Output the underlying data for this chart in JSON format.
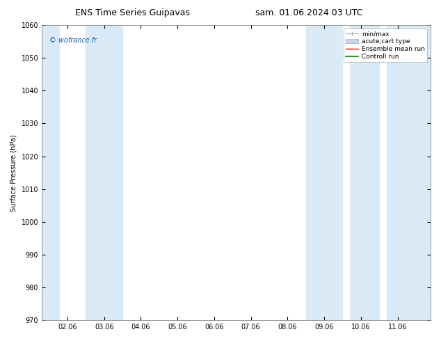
{
  "title_left": "ENS Time Series Guipavas",
  "title_right": "sam. 01.06.2024 03 UTC",
  "ylabel": "Surface Pressure (hPa)",
  "ylim": [
    970,
    1060
  ],
  "yticks": [
    970,
    980,
    990,
    1000,
    1010,
    1020,
    1030,
    1040,
    1050,
    1060
  ],
  "xtick_labels": [
    "02.06",
    "03.06",
    "04.06",
    "05.06",
    "06.06",
    "07.06",
    "08.06",
    "09.06",
    "10.06",
    "11.06"
  ],
  "xtick_positions": [
    1,
    2,
    3,
    4,
    5,
    6,
    7,
    8,
    9,
    10
  ],
  "xlim": [
    0.3,
    10.9
  ],
  "shaded_bands": [
    {
      "xmin": 0.3,
      "xmax": 0.78
    },
    {
      "xmin": 1.5,
      "xmax": 2.5
    },
    {
      "xmin": 7.5,
      "xmax": 8.5
    },
    {
      "xmin": 8.7,
      "xmax": 9.5
    },
    {
      "xmin": 9.7,
      "xmax": 10.9
    }
  ],
  "band_color": "#daeaf7",
  "watermark": "© wofrance.fr",
  "watermark_color": "#1a5fa8",
  "background_color": "#ffffff",
  "plot_bg_color": "#ffffff",
  "spine_color": "#888888",
  "title_fontsize": 9,
  "label_fontsize": 7,
  "tick_fontsize": 7,
  "legend_fontsize": 6.5
}
